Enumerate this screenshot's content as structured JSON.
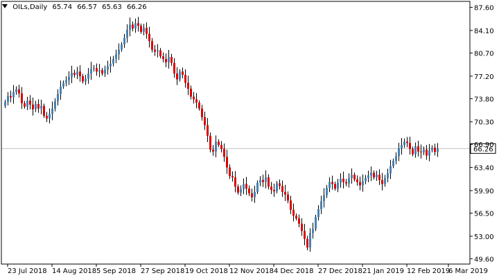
{
  "header": {
    "symbol_label": "OILs,Daily",
    "open": "65.74",
    "high": "66.57",
    "low": "65.63",
    "close": "66.26"
  },
  "colors": {
    "bull": "#4682b4",
    "bear": "#dd0000",
    "wick": "#000000",
    "background": "#ffffff",
    "axis": "#000000",
    "price_line": "#c0c0c0",
    "current_label_bg": "#ffffff"
  },
  "chart_data": {
    "type": "candlestick",
    "instrument": "OILs",
    "timeframe": "Daily",
    "ylim": [
      48.8,
      88.5
    ],
    "y_ticks": [
      "87.60",
      "84.10",
      "80.70",
      "77.20",
      "73.80",
      "70.30",
      "66.90",
      "63.40",
      "59.90",
      "56.50",
      "53.00",
      "49.60"
    ],
    "x_ticks": [
      "23 Jul 2018",
      "14 Aug 2018",
      "5 Sep 2018",
      "27 Sep 2018",
      "19 Oct 2018",
      "12 Nov 2018",
      "4 Dec 2018",
      "27 Dec 2018",
      "21 Jan 2019",
      "12 Feb 2019",
      "6 Mar 2019"
    ],
    "x_tick_bar_index": [
      1,
      17,
      33,
      49,
      65,
      81,
      97,
      113,
      129,
      145,
      160
    ],
    "current_price": "66.26",
    "closes": [
      73.3,
      74.2,
      74.0,
      74.8,
      75.2,
      74.6,
      73.1,
      72.6,
      73.5,
      72.9,
      72.2,
      73.0,
      72.3,
      72.7,
      71.2,
      70.8,
      71.5,
      72.3,
      73.4,
      74.5,
      75.6,
      76.2,
      76.6,
      77.1,
      77.7,
      77.4,
      77.9,
      77.2,
      76.4,
      76.8,
      77.6,
      78.3,
      78.4,
      77.9,
      78.1,
      77.6,
      78.2,
      78.7,
      79.1,
      79.8,
      80.5,
      81.2,
      82.0,
      83.0,
      84.2,
      85.0,
      84.4,
      85.2,
      84.8,
      83.9,
      84.5,
      83.6,
      82.5,
      81.2,
      80.9,
      81.1,
      80.2,
      79.8,
      79.3,
      80.1,
      79.2,
      77.6,
      76.7,
      77.9,
      77.4,
      76.2,
      75.3,
      74.1,
      73.7,
      73.2,
      72.3,
      71.0,
      69.8,
      68.2,
      66.1,
      65.8,
      67.3,
      66.8,
      66.2,
      65.0,
      63.4,
      62.1,
      61.9,
      60.5,
      59.6,
      60.1,
      60.9,
      60.2,
      59.5,
      58.9,
      59.7,
      61.1,
      61.5,
      61.2,
      61.9,
      60.5,
      60.0,
      59.8,
      61.0,
      60.6,
      59.7,
      59.3,
      58.4,
      57.0,
      56.1,
      55.7,
      54.9,
      53.8,
      52.6,
      51.3,
      53.5,
      54.1,
      55.9,
      57.1,
      58.3,
      59.2,
      60.3,
      61.2,
      60.9,
      60.2,
      61.1,
      61.7,
      61.2,
      61.0,
      61.8,
      62.3,
      61.6,
      61.2,
      60.7,
      61.3,
      61.8,
      62.2,
      62.6,
      61.9,
      62.3,
      61.5,
      60.9,
      61.8,
      62.5,
      63.6,
      64.4,
      65.1,
      66.3,
      66.8,
      67.3,
      67.1,
      66.2,
      65.4,
      66.6,
      65.8,
      65.7,
      66.1,
      65.2,
      66.0,
      66.4,
      65.74,
      66.26
    ]
  }
}
